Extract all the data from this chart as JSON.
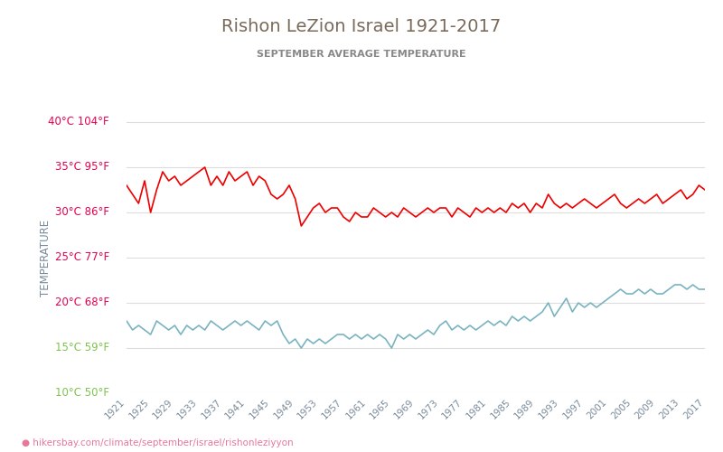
{
  "title": "Rishon LeZion Israel 1921-2017",
  "subtitle": "SEPTEMBER AVERAGE TEMPERATURE",
  "ylabel": "TEMPERATURE",
  "title_color": "#7a6a5a",
  "subtitle_color": "#888888",
  "ylabel_color": "#7a8a9a",
  "url_text": "hikersbay.com/climate/september/israel/rishonleziyyon",
  "years": [
    1921,
    1922,
    1923,
    1924,
    1925,
    1926,
    1927,
    1928,
    1929,
    1930,
    1931,
    1932,
    1933,
    1934,
    1935,
    1936,
    1937,
    1938,
    1939,
    1940,
    1941,
    1942,
    1943,
    1944,
    1945,
    1946,
    1947,
    1948,
    1949,
    1950,
    1951,
    1952,
    1953,
    1954,
    1955,
    1956,
    1957,
    1958,
    1959,
    1960,
    1961,
    1962,
    1963,
    1964,
    1965,
    1966,
    1967,
    1968,
    1969,
    1970,
    1971,
    1972,
    1973,
    1974,
    1975,
    1976,
    1977,
    1978,
    1979,
    1980,
    1981,
    1982,
    1983,
    1984,
    1985,
    1986,
    1987,
    1988,
    1989,
    1990,
    1991,
    1992,
    1993,
    1994,
    1995,
    1996,
    1997,
    1998,
    1999,
    2000,
    2001,
    2002,
    2003,
    2004,
    2005,
    2006,
    2007,
    2008,
    2009,
    2010,
    2011,
    2012,
    2013,
    2014,
    2015,
    2016,
    2017
  ],
  "day_temps": [
    33.0,
    32.0,
    31.0,
    33.5,
    30.0,
    32.5,
    34.5,
    33.5,
    34.0,
    33.0,
    33.5,
    34.0,
    34.5,
    35.0,
    33.0,
    34.0,
    33.0,
    34.5,
    33.5,
    34.0,
    34.5,
    33.0,
    34.0,
    33.5,
    32.0,
    31.5,
    32.0,
    33.0,
    31.5,
    28.5,
    29.5,
    30.5,
    31.0,
    30.0,
    30.5,
    30.5,
    29.5,
    29.0,
    30.0,
    29.5,
    29.5,
    30.5,
    30.0,
    29.5,
    30.0,
    29.5,
    30.5,
    30.0,
    29.5,
    30.0,
    30.5,
    30.0,
    30.5,
    30.5,
    29.5,
    30.5,
    30.0,
    29.5,
    30.5,
    30.0,
    30.5,
    30.0,
    30.5,
    30.0,
    31.0,
    30.5,
    31.0,
    30.0,
    31.0,
    30.5,
    32.0,
    31.0,
    30.5,
    31.0,
    30.5,
    31.0,
    31.5,
    31.0,
    30.5,
    31.0,
    31.5,
    32.0,
    31.0,
    30.5,
    31.0,
    31.5,
    31.0,
    31.5,
    32.0,
    31.0,
    31.5,
    32.0,
    32.5,
    31.5,
    32.0,
    33.0,
    32.5
  ],
  "night_temps": [
    18.0,
    17.0,
    17.5,
    17.0,
    16.5,
    18.0,
    17.5,
    17.0,
    17.5,
    16.5,
    17.5,
    17.0,
    17.5,
    17.0,
    18.0,
    17.5,
    17.0,
    17.5,
    18.0,
    17.5,
    18.0,
    17.5,
    17.0,
    18.0,
    17.5,
    18.0,
    16.5,
    15.5,
    16.0,
    15.0,
    16.0,
    15.5,
    16.0,
    15.5,
    16.0,
    16.5,
    16.5,
    16.0,
    16.5,
    16.0,
    16.5,
    16.0,
    16.5,
    16.0,
    15.0,
    16.5,
    16.0,
    16.5,
    16.0,
    16.5,
    17.0,
    16.5,
    17.5,
    18.0,
    17.0,
    17.5,
    17.0,
    17.5,
    17.0,
    17.5,
    18.0,
    17.5,
    18.0,
    17.5,
    18.5,
    18.0,
    18.5,
    18.0,
    18.5,
    19.0,
    20.0,
    18.5,
    19.5,
    20.5,
    19.0,
    20.0,
    19.5,
    20.0,
    19.5,
    20.0,
    20.5,
    21.0,
    21.5,
    21.0,
    21.0,
    21.5,
    21.0,
    21.5,
    21.0,
    21.0,
    21.5,
    22.0,
    22.0,
    21.5,
    22.0,
    21.5,
    21.5
  ],
  "day_color": "#ee0000",
  "night_color": "#7ab3c0",
  "bg_color": "#ffffff",
  "grid_color": "#dddddd",
  "yticks_c": [
    10,
    15,
    20,
    25,
    30,
    35,
    40
  ],
  "ytick_labels_pink": [
    "35°C 95°F",
    "30°C 86°F",
    "25°C 77°F",
    "20°C 68°F"
  ],
  "ytick_labels_green": [
    "15°C 59°F",
    "10°C 50°F"
  ],
  "ytick_label_top": "40°C 104°F",
  "xtick_years": [
    1921,
    1925,
    1929,
    1933,
    1937,
    1941,
    1945,
    1949,
    1953,
    1957,
    1961,
    1965,
    1969,
    1973,
    1977,
    1981,
    1985,
    1989,
    1993,
    1997,
    2001,
    2005,
    2009,
    2013,
    2017
  ],
  "legend_night_color": "#7ab3c0",
  "legend_day_color": "#ee0000",
  "url_color": "#e8779a",
  "pink_color": "#e8004a",
  "green_color": "#7dc44e",
  "tick_label_color": "#7a8a9a"
}
